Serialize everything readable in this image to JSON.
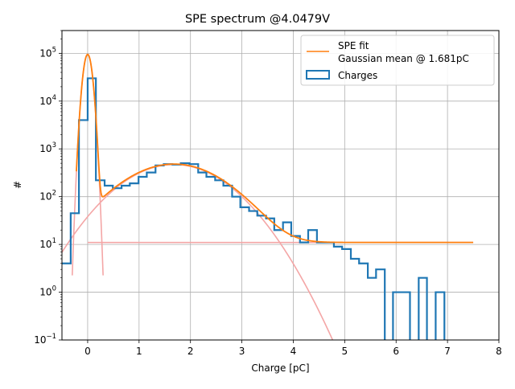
{
  "chart_data": {
    "type": "step-histogram",
    "title": "SPE spectrum @4.0479V",
    "xlabel": "Charge [pC]",
    "ylabel": "#",
    "xlim": [
      -0.5,
      8
    ],
    "ylim": [
      0.1,
      300000
    ],
    "yscale": "log",
    "grid": true,
    "legend_location": "upper right",
    "x_ticks": [
      {
        "value": 0,
        "label": "0"
      },
      {
        "value": 1,
        "label": "1"
      },
      {
        "value": 2,
        "label": "2"
      },
      {
        "value": 3,
        "label": "3"
      },
      {
        "value": 4,
        "label": "4"
      },
      {
        "value": 5,
        "label": "5"
      },
      {
        "value": 6,
        "label": "6"
      },
      {
        "value": 7,
        "label": "7"
      },
      {
        "value": 8,
        "label": "8"
      }
    ],
    "y_ticks": [
      {
        "value": 0.1,
        "base": "10",
        "exp": "−1"
      },
      {
        "value": 1,
        "base": "10",
        "exp": "0"
      },
      {
        "value": 10,
        "base": "10",
        "exp": "1"
      },
      {
        "value": 100,
        "base": "10",
        "exp": "2"
      },
      {
        "value": 1000,
        "base": "10",
        "exp": "3"
      },
      {
        "value": 10000,
        "base": "10",
        "exp": "4"
      },
      {
        "value": 100000,
        "base": "10",
        "exp": "5"
      }
    ],
    "legend": {
      "fit_label_line1": "SPE fit",
      "fit_label_line2": "Gaussian mean @ 1.681pC",
      "hist_label": "Charges"
    },
    "colors": {
      "histogram": "#1f77b4",
      "fit": "#ff7f0e",
      "components": "#f4a6a6",
      "grid": "#b0b0b0"
    },
    "histogram": {
      "name": "Charges",
      "bin_edges": [
        -0.5,
        -0.33,
        -0.17,
        0.0,
        0.16,
        0.33,
        0.49,
        0.66,
        0.82,
        0.99,
        1.15,
        1.32,
        1.48,
        1.65,
        1.81,
        1.98,
        2.15,
        2.31,
        2.48,
        2.64,
        2.81,
        2.97,
        3.14,
        3.3,
        3.47,
        3.63,
        3.8,
        3.96,
        4.13,
        4.29,
        4.46,
        4.62,
        4.79,
        4.95,
        5.12,
        5.28,
        5.45,
        5.61,
        5.78,
        5.94,
        6.11,
        6.27,
        6.44,
        6.6,
        6.77,
        6.94,
        7.1,
        7.27,
        7.43
      ],
      "counts": [
        4,
        45,
        4000,
        30000,
        220,
        170,
        150,
        170,
        190,
        260,
        320,
        450,
        480,
        470,
        500,
        480,
        320,
        260,
        220,
        170,
        100,
        60,
        50,
        40,
        35,
        20,
        29,
        15,
        11,
        20,
        11,
        11,
        9,
        8,
        5,
        4,
        2,
        3,
        0,
        1,
        1,
        0,
        2,
        0,
        1,
        0,
        0,
        0
      ]
    },
    "fit": {
      "name": "SPE fit",
      "pedestal": {
        "amplitude": 95000,
        "mean": 0.0,
        "sigma": 0.065
      },
      "spe_peak": {
        "amplitude": 470,
        "mean": 1.681,
        "sigma": 0.75
      },
      "background": 11,
      "x_range": [
        -0.22,
        7.5
      ]
    }
  }
}
